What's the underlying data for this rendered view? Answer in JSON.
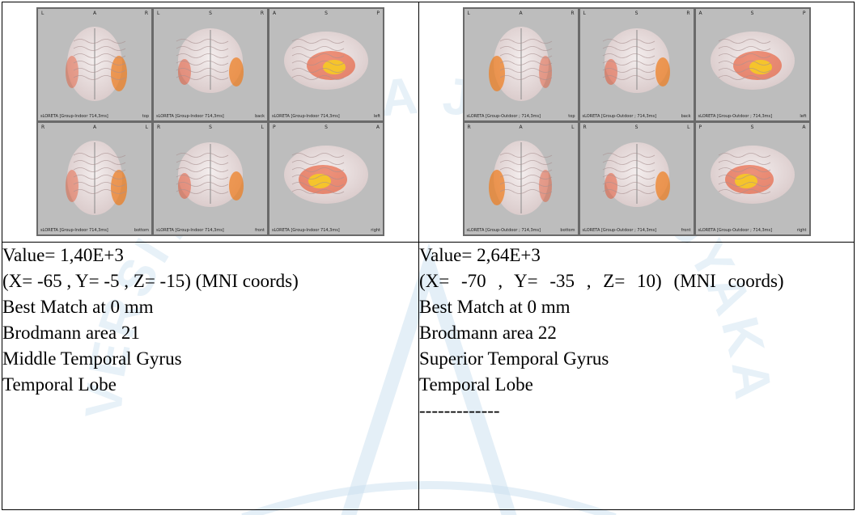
{
  "watermark": "UNIVERSITAS ATMA JAYA YOGYAKARTA",
  "left": {
    "group_label": "sLORETA  [Group-Indoor 714,3ms]",
    "views": [
      {
        "tl": "L",
        "tc": "A",
        "tr": "R",
        "orient": "top"
      },
      {
        "tl": "L",
        "tc": "S",
        "tr": "R",
        "orient": "back"
      },
      {
        "tl": "A",
        "tc": "S",
        "tr": "P",
        "orient": "left"
      },
      {
        "tl": "R",
        "tc": "A",
        "tr": "L",
        "orient": "bottom"
      },
      {
        "tl": "R",
        "tc": "S",
        "tr": "L",
        "orient": "front"
      },
      {
        "tl": "P",
        "tc": "S",
        "tr": "A",
        "orient": "right"
      }
    ],
    "lines": [
      "Value= 1,40E+3",
      "(X= -65 , Y= -5 , Z= -15) (MNI coords)",
      "Best Match at 0 mm",
      "Brodmann area 21",
      "Middle Temporal Gyrus",
      "Temporal Lobe"
    ]
  },
  "right": {
    "group_label": "sLORETA  [Group-Outdoor ; 714,3ms]",
    "views": [
      {
        "tl": "L",
        "tc": "A",
        "tr": "R",
        "orient": "top"
      },
      {
        "tl": "L",
        "tc": "S",
        "tr": "R",
        "orient": "back"
      },
      {
        "tl": "A",
        "tc": "S",
        "tr": "P",
        "orient": "left"
      },
      {
        "tl": "R",
        "tc": "A",
        "tr": "L",
        "orient": "bottom"
      },
      {
        "tl": "R",
        "tc": "S",
        "tr": "L",
        "orient": "front"
      },
      {
        "tl": "P",
        "tc": "S",
        "tr": "A",
        "orient": "right"
      }
    ],
    "lines": [
      "Value= 2,64E+3",
      "(X= -70 , Y= -35 , Z= 10) (MNI coords)",
      "Best Match at 0 mm",
      "Brodmann area 22",
      "Superior Temporal Gyrus",
      "Temporal Lobe",
      "-------------"
    ]
  }
}
